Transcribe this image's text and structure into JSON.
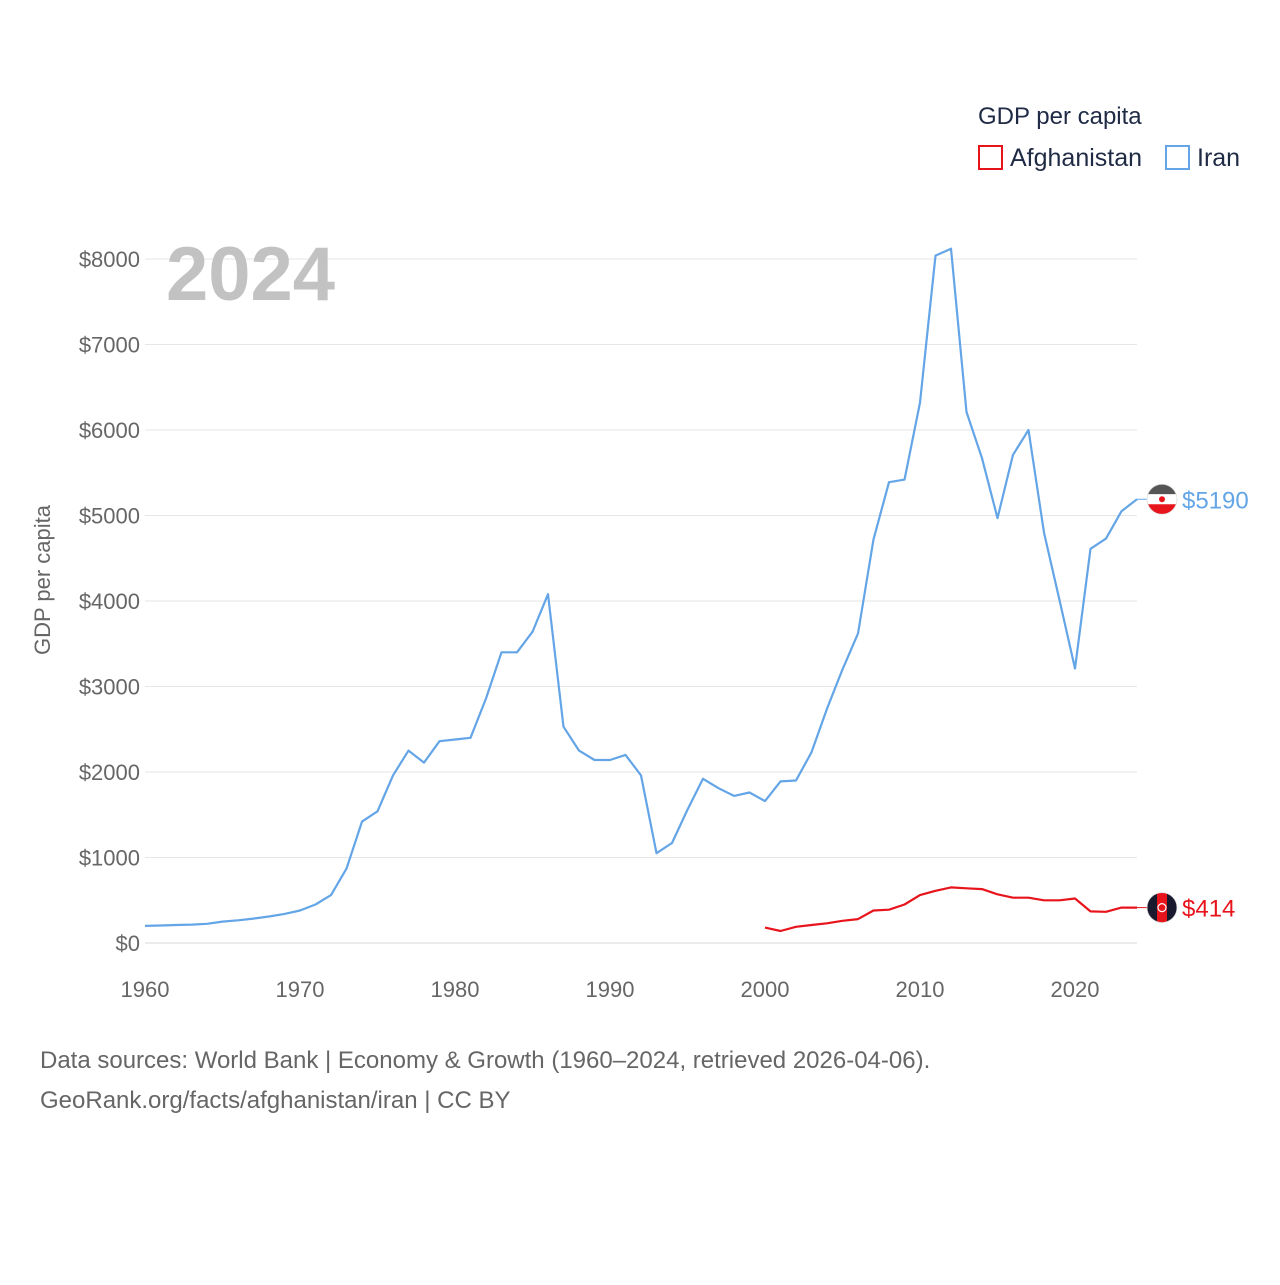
{
  "chart_data": {
    "type": "line",
    "title": "GDP per capita",
    "ylabel": "GDP per capita",
    "xlabel": "",
    "year_label": "2024",
    "xlim": [
      1960,
      2024
    ],
    "ylim": [
      0,
      8000
    ],
    "x_ticks": [
      1960,
      1970,
      1980,
      1990,
      2000,
      2010,
      2020
    ],
    "x_tick_labels": [
      "1960",
      "1970",
      "1980",
      "1990",
      "2000",
      "2010",
      "2020"
    ],
    "y_ticks": [
      0,
      1000,
      2000,
      3000,
      4000,
      5000,
      6000,
      7000,
      8000
    ],
    "y_tick_labels": [
      "$0",
      "$1000",
      "$2000",
      "$3000",
      "$4000",
      "$5000",
      "$6000",
      "$7000",
      "$8000"
    ],
    "grid": true,
    "legend_position": "top-right",
    "series": [
      {
        "name": "Afghanistan",
        "color": "#e8141c",
        "end_label": "$414",
        "flag_icon": "afghanistan-flag-icon",
        "points": [
          [
            2000,
            180
          ],
          [
            2001,
            140
          ],
          [
            2002,
            190
          ],
          [
            2003,
            210
          ],
          [
            2004,
            230
          ],
          [
            2005,
            260
          ],
          [
            2006,
            280
          ],
          [
            2007,
            380
          ],
          [
            2008,
            390
          ],
          [
            2009,
            450
          ],
          [
            2010,
            560
          ],
          [
            2011,
            610
          ],
          [
            2012,
            650
          ],
          [
            2013,
            640
          ],
          [
            2014,
            630
          ],
          [
            2015,
            570
          ],
          [
            2016,
            530
          ],
          [
            2017,
            530
          ],
          [
            2018,
            500
          ],
          [
            2019,
            500
          ],
          [
            2020,
            520
          ],
          [
            2021,
            370
          ],
          [
            2022,
            365
          ],
          [
            2023,
            414
          ],
          [
            2024,
            414
          ]
        ]
      },
      {
        "name": "Iran",
        "color": "#63a5e6",
        "end_label": "$5190",
        "flag_icon": "iran-flag-icon",
        "points": [
          [
            1960,
            200
          ],
          [
            1961,
            205
          ],
          [
            1962,
            210
          ],
          [
            1963,
            215
          ],
          [
            1964,
            225
          ],
          [
            1965,
            250
          ],
          [
            1966,
            265
          ],
          [
            1967,
            285
          ],
          [
            1968,
            310
          ],
          [
            1969,
            340
          ],
          [
            1970,
            380
          ],
          [
            1971,
            450
          ],
          [
            1972,
            560
          ],
          [
            1973,
            870
          ],
          [
            1974,
            1420
          ],
          [
            1975,
            1540
          ],
          [
            1976,
            1960
          ],
          [
            1977,
            2250
          ],
          [
            1978,
            2110
          ],
          [
            1979,
            2360
          ],
          [
            1980,
            2380
          ],
          [
            1981,
            2400
          ],
          [
            1982,
            2860
          ],
          [
            1983,
            3400
          ],
          [
            1984,
            3400
          ],
          [
            1985,
            3640
          ],
          [
            1986,
            4080
          ],
          [
            1987,
            2530
          ],
          [
            1988,
            2250
          ],
          [
            1989,
            2140
          ],
          [
            1990,
            2140
          ],
          [
            1991,
            2200
          ],
          [
            1992,
            1960
          ],
          [
            1993,
            1050
          ],
          [
            1994,
            1170
          ],
          [
            1995,
            1560
          ],
          [
            1996,
            1920
          ],
          [
            1997,
            1810
          ],
          [
            1998,
            1720
          ],
          [
            1999,
            1760
          ],
          [
            2000,
            1660
          ],
          [
            2001,
            1890
          ],
          [
            2002,
            1900
          ],
          [
            2003,
            2230
          ],
          [
            2004,
            2740
          ],
          [
            2005,
            3200
          ],
          [
            2006,
            3620
          ],
          [
            2007,
            4720
          ],
          [
            2008,
            5390
          ],
          [
            2009,
            5420
          ],
          [
            2010,
            6320
          ],
          [
            2011,
            8040
          ],
          [
            2012,
            8120
          ],
          [
            2013,
            6210
          ],
          [
            2014,
            5670
          ],
          [
            2015,
            4970
          ],
          [
            2016,
            5710
          ],
          [
            2017,
            6000
          ],
          [
            2018,
            4800
          ],
          [
            2019,
            4010
          ],
          [
            2020,
            3210
          ],
          [
            2021,
            4610
          ],
          [
            2022,
            4730
          ],
          [
            2023,
            5050
          ],
          [
            2024,
            5190
          ]
        ]
      }
    ]
  },
  "source": {
    "line1": "Data sources: World Bank | Economy & Growth (1960–2024, retrieved 2026-04-06).",
    "line2": "GeoRank.org/facts/afghanistan/iran | CC BY"
  }
}
